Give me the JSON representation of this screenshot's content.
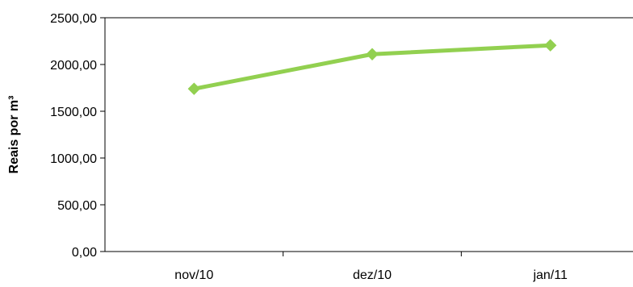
{
  "chart_data": {
    "type": "line",
    "categories": [
      "nov/10",
      "dez/10",
      "jan/11"
    ],
    "series": [
      {
        "values": [
          1740,
          2110,
          2205
        ],
        "color": "#92d050",
        "marker": "diamond"
      }
    ],
    "title": "",
    "xlabel": "",
    "ylabel": "Reais por m³",
    "ylim": [
      0,
      2500
    ],
    "y_ticks": [
      0,
      500,
      1000,
      1500,
      2000,
      2500
    ],
    "y_tick_labels": [
      "0,00",
      "500,00",
      "1000,00",
      "1500,00",
      "2000,00",
      "2500,00"
    ],
    "grid": false,
    "legend": "none"
  }
}
